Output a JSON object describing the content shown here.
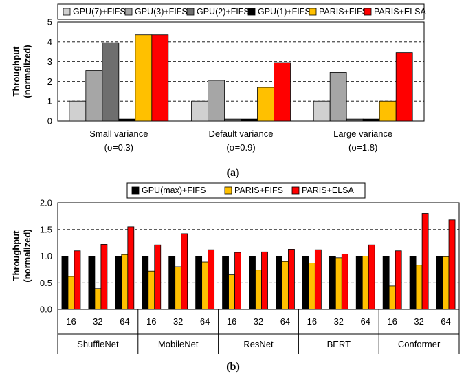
{
  "chart_data": [
    {
      "type": "bar",
      "caption": "(a)",
      "ylabel": [
        "Throughput",
        "(normalized)"
      ],
      "ylim": [
        0,
        5
      ],
      "yticks": [
        "0",
        "1",
        "2",
        "3",
        "4",
        "5"
      ],
      "grid": "horizontal dashed",
      "legend_position": "top",
      "categories": [
        [
          "Small variance",
          "(σ=0.3)"
        ],
        [
          "Default variance",
          "(σ=0.9)"
        ],
        [
          "Large variance",
          "(σ=1.8)"
        ]
      ],
      "series": [
        {
          "name": "GPU(7)+FIFS",
          "color": "#d0d0d0",
          "values": [
            1.0,
            1.0,
            1.0
          ]
        },
        {
          "name": "GPU(3)+FIFS",
          "color": "#a6a6a6",
          "values": [
            2.55,
            2.05,
            2.45
          ]
        },
        {
          "name": "GPU(2)+FIFS",
          "color": "#6e6e6e",
          "values": [
            3.95,
            0.1,
            0.1
          ]
        },
        {
          "name": "GPU(1)+FIFS",
          "color": "#000000",
          "values": [
            0.1,
            0.1,
            0.1
          ]
        },
        {
          "name": "PARIS+FIFS",
          "color": "#ffc000",
          "values": [
            4.35,
            1.7,
            1.0
          ]
        },
        {
          "name": "PARIS+ELSA",
          "color": "#ff0000",
          "values": [
            4.35,
            2.95,
            3.45
          ]
        }
      ]
    },
    {
      "type": "bar",
      "caption": "(b)",
      "ylabel": [
        "Throughput",
        "(normalized)"
      ],
      "ylim": [
        0,
        2.0
      ],
      "yticks": [
        "0.0",
        "0.5",
        "1.0",
        "1.5",
        "2.0"
      ],
      "grid": "horizontal dashed",
      "legend_position": "top",
      "groups": [
        {
          "name": "ShuffleNet",
          "batches": [
            "16",
            "32",
            "64"
          ]
        },
        {
          "name": "MobileNet",
          "batches": [
            "16",
            "32",
            "64"
          ]
        },
        {
          "name": "ResNet",
          "batches": [
            "16",
            "32",
            "64"
          ]
        },
        {
          "name": "BERT",
          "batches": [
            "16",
            "32",
            "64"
          ]
        },
        {
          "name": "Conformer",
          "batches": [
            "16",
            "32",
            "64"
          ]
        }
      ],
      "series": [
        {
          "name": "GPU(max)+FIFS",
          "color": "#000000",
          "values": [
            1.0,
            1.0,
            1.0,
            1.0,
            1.0,
            1.0,
            1.0,
            1.0,
            1.0,
            1.0,
            1.0,
            1.0,
            1.0,
            1.0,
            1.0
          ]
        },
        {
          "name": "PARIS+FIFS",
          "color": "#ffc000",
          "values": [
            0.62,
            0.39,
            1.03,
            0.72,
            0.8,
            0.89,
            0.65,
            0.74,
            0.9,
            0.87,
            0.97,
            1.0,
            0.44,
            0.83,
            0.99
          ]
        },
        {
          "name": "PARIS+ELSA",
          "color": "#ff0000",
          "values": [
            1.1,
            1.22,
            1.55,
            1.21,
            1.42,
            1.12,
            1.07,
            1.08,
            1.13,
            1.12,
            1.04,
            1.21,
            1.1,
            1.8,
            1.68
          ]
        }
      ]
    }
  ]
}
